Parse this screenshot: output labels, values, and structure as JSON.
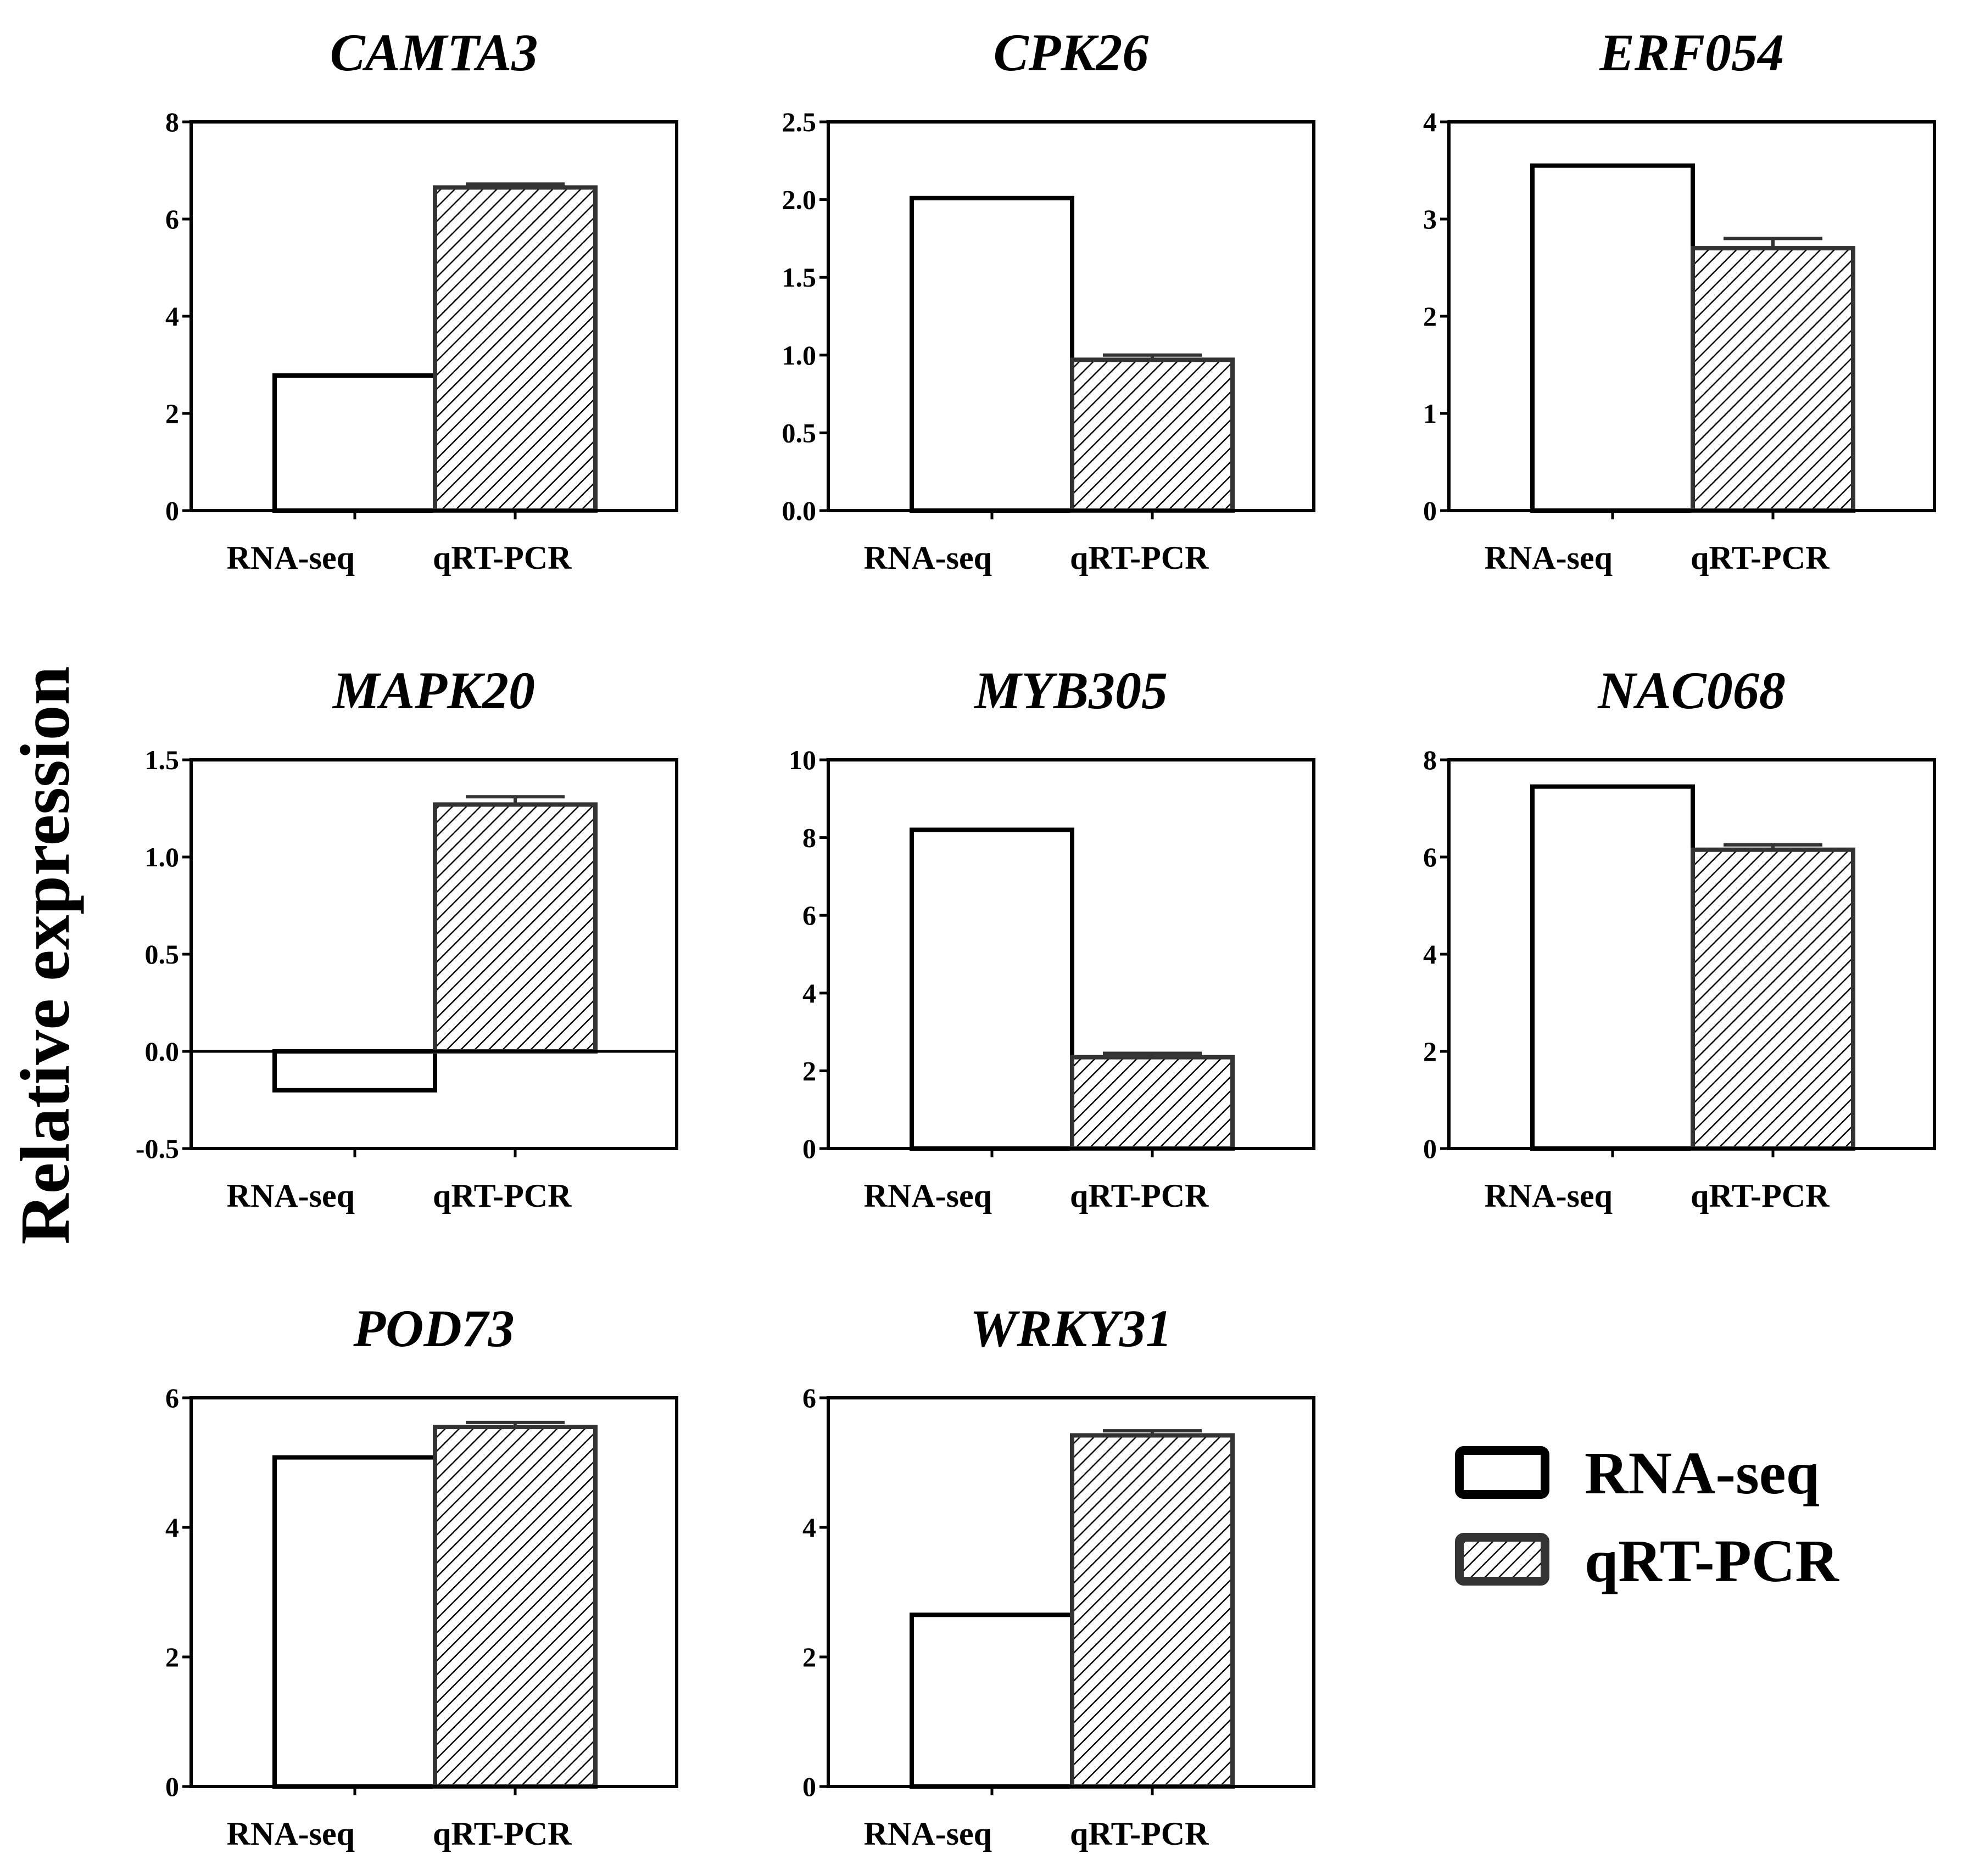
{
  "figure": {
    "ylabel": "Relative expression"
  },
  "legend": {
    "items": [
      {
        "label": "RNA-seq",
        "pattern": "open"
      },
      {
        "label": "qRT-PCR",
        "pattern": "hatched"
      }
    ]
  },
  "colors": {
    "stroke": "#000000",
    "qrt_stroke": "#333333",
    "hatch": "#000000",
    "fill": "#ffffff"
  },
  "chart_data": [
    {
      "type": "bar",
      "title": "CAMTA3",
      "categories": [
        "RNA-seq",
        "qRT-PCR"
      ],
      "values": [
        2.78,
        6.65
      ],
      "errors": [
        0,
        0.07
      ],
      "ylim": [
        0,
        8
      ],
      "yticks": [
        0,
        2,
        4,
        6,
        8
      ],
      "ytick_labels": [
        "0",
        "2",
        "4",
        "6",
        "8"
      ]
    },
    {
      "type": "bar",
      "title": "CPK26",
      "categories": [
        "RNA-seq",
        "qRT-PCR"
      ],
      "values": [
        2.01,
        0.97
      ],
      "errors": [
        0,
        0.03
      ],
      "ylim": [
        0,
        2.5
      ],
      "yticks": [
        0,
        0.5,
        1,
        1.5,
        2,
        2.5
      ],
      "ytick_labels": [
        "0.0",
        "0.5",
        "1.0",
        "1.5",
        "2.0",
        "2.5"
      ]
    },
    {
      "type": "bar",
      "title": "ERF054",
      "categories": [
        "RNA-seq",
        "qRT-PCR"
      ],
      "values": [
        3.55,
        2.7
      ],
      "errors": [
        0,
        0.1
      ],
      "ylim": [
        0,
        4
      ],
      "yticks": [
        0,
        1,
        2,
        3,
        4
      ],
      "ytick_labels": [
        "0",
        "1",
        "2",
        "3",
        "4"
      ]
    },
    {
      "type": "bar",
      "title": "MAPK20",
      "categories": [
        "RNA-seq",
        "qRT-PCR"
      ],
      "values": [
        -0.2,
        1.27
      ],
      "errors": [
        0,
        0.04
      ],
      "ylim": [
        -0.5,
        1.5
      ],
      "yticks": [
        -0.5,
        0,
        0.5,
        1,
        1.5
      ],
      "ytick_labels": [
        "-0.5",
        "0.0",
        "0.5",
        "1.0",
        "1.5"
      ]
    },
    {
      "type": "bar",
      "title": "MYB305",
      "categories": [
        "RNA-seq",
        "qRT-PCR"
      ],
      "values": [
        8.2,
        2.35
      ],
      "errors": [
        0,
        0.1
      ],
      "ylim": [
        0,
        10
      ],
      "yticks": [
        0,
        2,
        4,
        6,
        8,
        10
      ],
      "ytick_labels": [
        "0",
        "2",
        "4",
        "6",
        "8",
        "10"
      ]
    },
    {
      "type": "bar",
      "title": "NAC068",
      "categories": [
        "RNA-seq",
        "qRT-PCR"
      ],
      "values": [
        7.45,
        6.15
      ],
      "errors": [
        0,
        0.1
      ],
      "ylim": [
        0,
        8
      ],
      "yticks": [
        0,
        2,
        4,
        6,
        8
      ],
      "ytick_labels": [
        "0",
        "2",
        "4",
        "6",
        "8"
      ]
    },
    {
      "type": "bar",
      "title": "POD73",
      "categories": [
        "RNA-seq",
        "qRT-PCR"
      ],
      "values": [
        5.08,
        5.55
      ],
      "errors": [
        0,
        0.07
      ],
      "ylim": [
        0,
        6
      ],
      "yticks": [
        0,
        2,
        4,
        6
      ],
      "ytick_labels": [
        "0",
        "2",
        "4",
        "6"
      ]
    },
    {
      "type": "bar",
      "title": "WRKY31",
      "categories": [
        "RNA-seq",
        "qRT-PCR"
      ],
      "values": [
        2.65,
        5.42
      ],
      "errors": [
        0,
        0.07
      ],
      "ylim": [
        0,
        6
      ],
      "yticks": [
        0,
        2,
        4,
        6
      ],
      "ytick_labels": [
        "0",
        "2",
        "4",
        "6"
      ]
    }
  ]
}
